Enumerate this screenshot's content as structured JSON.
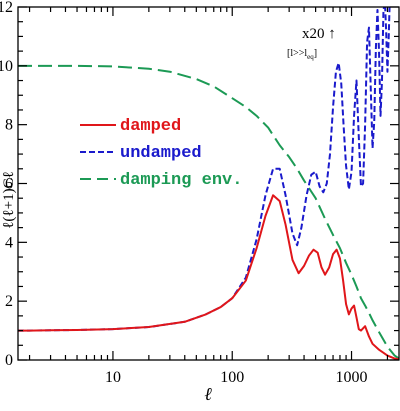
{
  "chart_data": {
    "type": "line",
    "title": "",
    "xlabel": "ℓ",
    "ylabel": "ℓ(ℓ+1)Cℓ",
    "xscale": "log",
    "xlim": [
      1.6,
      2500
    ],
    "ylim": [
      0,
      12
    ],
    "x_ticks": [
      10,
      100,
      1000
    ],
    "x_tick_labels": [
      "10",
      "100",
      "1000"
    ],
    "y_ticks": [
      0,
      2,
      4,
      6,
      8,
      10,
      12
    ],
    "y_tick_labels": [
      "0",
      "2",
      "4",
      "6",
      "8",
      "10",
      "12"
    ],
    "grid": false,
    "legend_position": "middle-left",
    "annotations": [
      {
        "text": "x20 ↑",
        "x": 600,
        "y": 11.2
      },
      {
        "text": "[l>>l",
        "sub": "eq",
        "close": "]",
        "x": 420,
        "y": 10.5
      }
    ],
    "series": [
      {
        "name": "damped",
        "color": "#e0161a",
        "style": "solid",
        "x": [
          1.6,
          2,
          3,
          5,
          10,
          20,
          40,
          60,
          80,
          100,
          130,
          160,
          190,
          220,
          250,
          280,
          320,
          360,
          400,
          440,
          480,
          520,
          560,
          600,
          650,
          700,
          750,
          800,
          850,
          900,
          950,
          1000,
          1050,
          1100,
          1150,
          1200,
          1300,
          1400,
          1500,
          1700,
          2000,
          2300,
          2500
        ],
        "y": [
          1.0,
          1.0,
          1.01,
          1.02,
          1.05,
          1.12,
          1.3,
          1.55,
          1.8,
          2.1,
          2.7,
          3.8,
          4.9,
          5.6,
          5.4,
          4.6,
          3.4,
          2.95,
          3.2,
          3.55,
          3.75,
          3.65,
          3.15,
          2.9,
          3.15,
          3.6,
          3.75,
          3.45,
          2.7,
          1.9,
          1.55,
          1.75,
          1.85,
          1.45,
          1.05,
          1.0,
          1.15,
          0.8,
          0.55,
          0.35,
          0.15,
          0.05,
          0.02
        ]
      },
      {
        "name": "undamped",
        "color": "#1a1acc",
        "style": "dashed",
        "x": [
          1.6,
          2,
          3,
          5,
          10,
          20,
          40,
          60,
          80,
          100,
          130,
          160,
          190,
          220,
          250,
          280,
          320,
          350,
          380,
          420,
          460,
          500,
          540,
          580,
          620,
          660,
          700,
          740,
          780,
          820,
          860,
          900,
          950,
          1000,
          1050,
          1100,
          1150,
          1200,
          1250,
          1300,
          1350,
          1400,
          1450,
          1500,
          1550,
          1600,
          1650,
          1700,
          1750,
          1800,
          1850,
          1900,
          1950,
          2000,
          2050,
          2100
        ],
        "y": [
          1.0,
          1.0,
          1.01,
          1.02,
          1.05,
          1.12,
          1.3,
          1.55,
          1.8,
          2.1,
          2.8,
          4.1,
          5.6,
          6.5,
          6.5,
          5.6,
          4.3,
          3.9,
          4.5,
          5.6,
          6.3,
          6.4,
          5.9,
          5.7,
          6.0,
          7.0,
          8.6,
          9.8,
          10.1,
          9.4,
          7.9,
          6.6,
          5.8,
          6.4,
          8.3,
          9.5,
          7.6,
          5.9,
          6.0,
          8.0,
          10.8,
          11.3,
          9.2,
          7.2,
          8.1,
          10.6,
          11.9,
          10.5,
          8.3,
          9.5,
          11.8,
          12.3,
          11.2,
          9.8,
          11.0,
          12.5
        ]
      },
      {
        "name": "damping env.",
        "color": "#1c9a55",
        "style": "long-dashed",
        "x": [
          1.6,
          2,
          3,
          5,
          10,
          20,
          30,
          50,
          70,
          100,
          130,
          160,
          200,
          250,
          300,
          350,
          400,
          500,
          600,
          700,
          800,
          900,
          1000,
          1100,
          1200,
          1300,
          1400,
          1500,
          1700,
          2000,
          2300,
          2500
        ],
        "y": [
          10.0,
          10.0,
          10.0,
          10.0,
          9.98,
          9.9,
          9.8,
          9.55,
          9.3,
          8.9,
          8.6,
          8.3,
          7.9,
          7.3,
          6.9,
          6.5,
          6.1,
          5.5,
          4.8,
          4.25,
          3.8,
          3.3,
          2.9,
          2.5,
          2.1,
          1.85,
          1.6,
          1.35,
          0.95,
          0.45,
          0.15,
          0.05
        ]
      }
    ]
  }
}
